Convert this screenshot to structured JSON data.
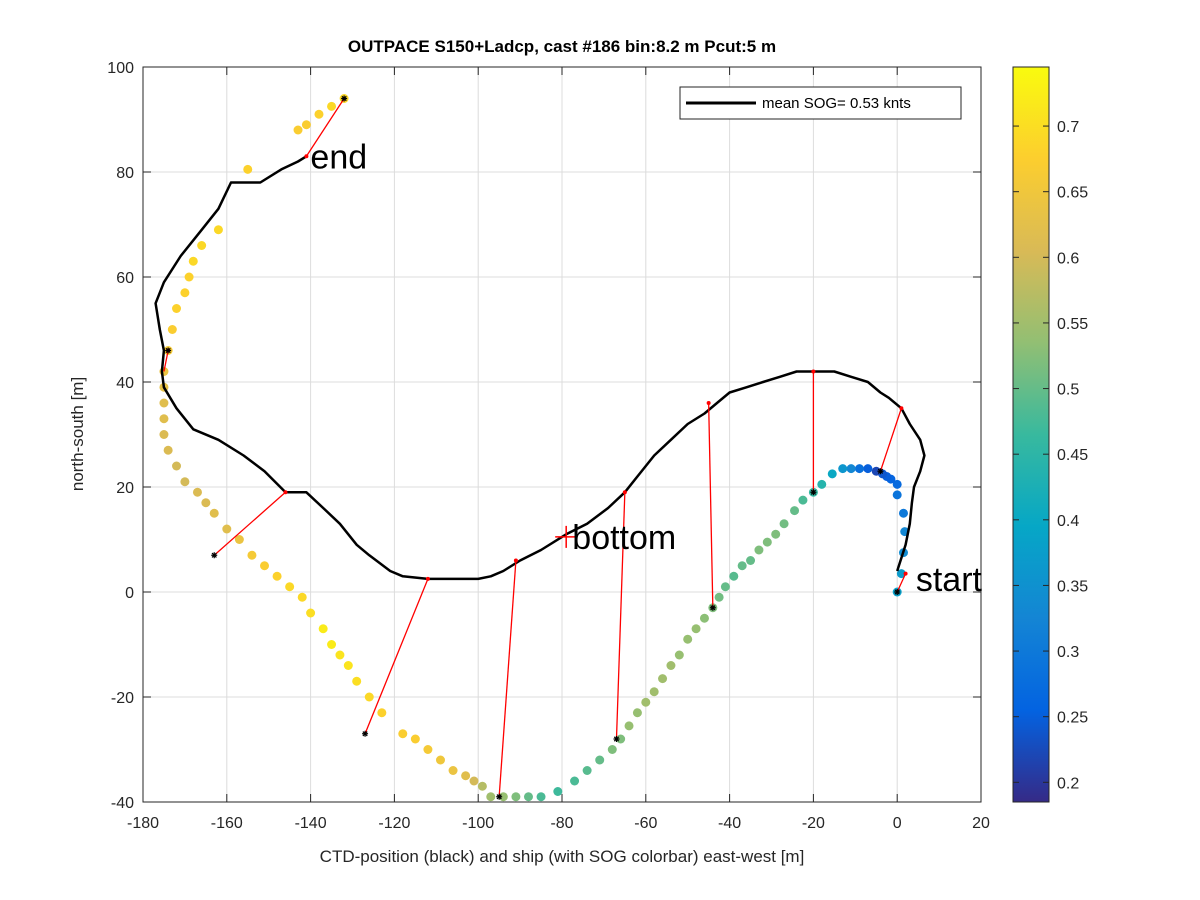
{
  "chart_data": {
    "type": "scatter",
    "title": "OUTPACE S150+Ladcp, cast #186 bin:8.2 m  Pcut:5 m",
    "xlabel": "CTD-position (black) and ship (with SOG colorbar) east-west [m]",
    "ylabel": "north-south [m]",
    "xlim": [
      -180,
      20
    ],
    "ylim": [
      -40,
      100
    ],
    "xticks": [
      "-180",
      "-160",
      "-140",
      "-120",
      "-100",
      "-80",
      "-60",
      "-40",
      "-20",
      "0",
      "20"
    ],
    "yticks": [
      "-40",
      "-20",
      "0",
      "20",
      "40",
      "60",
      "80",
      "100"
    ],
    "grid": true,
    "legend": {
      "entry": "mean SOG=  0.53 knts",
      "placement": "top-right"
    },
    "annotations": [
      {
        "text": "end",
        "x": -141,
        "y": 83
      },
      {
        "text": "bottom",
        "x": -78.5,
        "y": 10.5
      },
      {
        "text": "start",
        "x": 3.5,
        "y": 2.5
      }
    ],
    "bottom_marker": {
      "x": -79,
      "y": 10.5
    },
    "colorbar": {
      "range": [
        0.185,
        0.745
      ],
      "ticks": [
        "0.2",
        "0.25",
        "0.3",
        "0.35",
        "0.4",
        "0.45",
        "0.5",
        "0.55",
        "0.6",
        "0.65",
        "0.7"
      ],
      "colormap": [
        "#352a87",
        "#0363e1",
        "#1485d4",
        "#06a7c6",
        "#38b99e",
        "#92bf73",
        "#d9ba56",
        "#fcce2e",
        "#f9fb0e"
      ]
    },
    "ctd_track": [
      [
        0,
        4
      ],
      [
        2,
        9
      ],
      [
        3,
        13
      ],
      [
        3.5,
        17
      ],
      [
        4,
        20
      ],
      [
        5.5,
        23
      ],
      [
        6.5,
        26
      ],
      [
        5.5,
        29
      ],
      [
        3,
        32
      ],
      [
        1,
        35
      ],
      [
        -2,
        37
      ],
      [
        -4,
        38
      ],
      [
        -7,
        40
      ],
      [
        -11,
        41
      ],
      [
        -15,
        42
      ],
      [
        -20,
        42
      ],
      [
        -24,
        42
      ],
      [
        -28,
        41
      ],
      [
        -32,
        40
      ],
      [
        -36,
        39
      ],
      [
        -40,
        38
      ],
      [
        -43,
        36
      ],
      [
        -46,
        34
      ],
      [
        -50,
        32
      ],
      [
        -54,
        29
      ],
      [
        -58,
        26
      ],
      [
        -62,
        22
      ],
      [
        -65,
        19
      ],
      [
        -69,
        16
      ],
      [
        -74,
        13
      ],
      [
        -79,
        11
      ],
      [
        -85,
        8
      ],
      [
        -90,
        6
      ],
      [
        -94,
        4
      ],
      [
        -97,
        3
      ],
      [
        -100,
        2.5
      ],
      [
        -106,
        2.5
      ],
      [
        -112,
        2.5
      ],
      [
        -118,
        3
      ],
      [
        -121,
        4
      ],
      [
        -126,
        7
      ],
      [
        -129,
        9
      ],
      [
        -133,
        13
      ],
      [
        -137,
        16
      ],
      [
        -141,
        19
      ],
      [
        -146,
        19
      ],
      [
        -151,
        23
      ],
      [
        -156,
        26
      ],
      [
        -162,
        29
      ],
      [
        -168,
        31
      ],
      [
        -172,
        35
      ],
      [
        -175,
        39
      ],
      [
        -175.5,
        42
      ],
      [
        -175,
        46
      ],
      [
        -176,
        50
      ],
      [
        -177,
        55
      ],
      [
        -175,
        59
      ],
      [
        -171,
        64
      ],
      [
        -166,
        69
      ],
      [
        -162,
        73
      ],
      [
        -159,
        78
      ],
      [
        -155,
        78
      ],
      [
        -152,
        78
      ],
      [
        -147,
        80.5
      ],
      [
        -143,
        82
      ],
      [
        -141,
        83
      ]
    ],
    "ship_positions": [
      [
        0,
        0,
        0.38
      ],
      [
        1,
        3.5,
        0.37
      ],
      [
        1.5,
        7.5,
        0.34
      ],
      [
        1.8,
        11.5,
        0.33
      ],
      [
        1.5,
        15,
        0.3
      ],
      [
        0,
        18.5,
        0.29
      ],
      [
        0,
        20.5,
        0.27
      ],
      [
        -1.5,
        21.5,
        0.26
      ],
      [
        -2.5,
        22,
        0.25
      ],
      [
        -3.5,
        22.5,
        0.24
      ],
      [
        -5,
        23,
        0.22
      ],
      [
        -7,
        23.5,
        0.25
      ],
      [
        -9,
        23.5,
        0.28
      ],
      [
        -11,
        23.5,
        0.33
      ],
      [
        -13,
        23.5,
        0.36
      ],
      [
        -15.5,
        22.5,
        0.4
      ],
      [
        -18,
        20.5,
        0.44
      ],
      [
        -20,
        19,
        0.46
      ],
      [
        -22.5,
        17.5,
        0.48
      ],
      [
        -24.5,
        15.5,
        0.5
      ],
      [
        -27,
        13,
        0.51
      ],
      [
        -29,
        11,
        0.52
      ],
      [
        -31,
        9.5,
        0.52
      ],
      [
        -33,
        8,
        0.52
      ],
      [
        -35,
        6,
        0.5
      ],
      [
        -37,
        5,
        0.5
      ],
      [
        -39,
        3,
        0.49
      ],
      [
        -41,
        1,
        0.5
      ],
      [
        -42.5,
        -1,
        0.51
      ],
      [
        -44,
        -3,
        0.52
      ],
      [
        -46,
        -5,
        0.53
      ],
      [
        -48,
        -7,
        0.54
      ],
      [
        -50,
        -9,
        0.54
      ],
      [
        -52,
        -12,
        0.54
      ],
      [
        -54,
        -14,
        0.55
      ],
      [
        -56,
        -16.5,
        0.55
      ],
      [
        -58,
        -19,
        0.55
      ],
      [
        -60,
        -21,
        0.55
      ],
      [
        -62,
        -23,
        0.54
      ],
      [
        -64,
        -25.5,
        0.54
      ],
      [
        -66,
        -28,
        0.52
      ],
      [
        -68,
        -30,
        0.52
      ],
      [
        -71,
        -32,
        0.5
      ],
      [
        -74,
        -34,
        0.49
      ],
      [
        -77,
        -36,
        0.48
      ],
      [
        -81,
        -38,
        0.47
      ],
      [
        -85,
        -39,
        0.48
      ],
      [
        -88,
        -39,
        0.5
      ],
      [
        -91,
        -39,
        0.52
      ],
      [
        -94,
        -39,
        0.54
      ],
      [
        -97,
        -39,
        0.55
      ],
      [
        -99,
        -37,
        0.57
      ],
      [
        -101,
        -36,
        0.6
      ],
      [
        -103,
        -35,
        0.62
      ],
      [
        -106,
        -34,
        0.64
      ],
      [
        -109,
        -32,
        0.65
      ],
      [
        -112,
        -30,
        0.66
      ],
      [
        -115,
        -28,
        0.67
      ],
      [
        -118,
        -27,
        0.67
      ],
      [
        -123,
        -23,
        0.68
      ],
      [
        -126,
        -20,
        0.69
      ],
      [
        -129,
        -17,
        0.7
      ],
      [
        -131,
        -14,
        0.71
      ],
      [
        -133,
        -12,
        0.71
      ],
      [
        -135,
        -10,
        0.72
      ],
      [
        -137,
        -7,
        0.72
      ],
      [
        -140,
        -4,
        0.7
      ],
      [
        -142,
        -1,
        0.69
      ],
      [
        -145,
        1,
        0.69
      ],
      [
        -148,
        3,
        0.68
      ],
      [
        -151,
        5,
        0.67
      ],
      [
        -154,
        7,
        0.66
      ],
      [
        -157,
        10,
        0.64
      ],
      [
        -160,
        12,
        0.62
      ],
      [
        -163,
        15,
        0.62
      ],
      [
        -165,
        17,
        0.61
      ],
      [
        -167,
        19,
        0.61
      ],
      [
        -170,
        21,
        0.6
      ],
      [
        -172,
        24,
        0.6
      ],
      [
        -174,
        27,
        0.61
      ],
      [
        -175,
        30,
        0.61
      ],
      [
        -175,
        33,
        0.62
      ],
      [
        -175,
        36,
        0.62
      ],
      [
        -175,
        39,
        0.63
      ],
      [
        -175,
        42,
        0.64
      ],
      [
        -174,
        46,
        0.66
      ],
      [
        -173,
        50,
        0.67
      ],
      [
        -172,
        54,
        0.68
      ],
      [
        -170,
        57,
        0.68
      ],
      [
        -169,
        60,
        0.68
      ],
      [
        -168,
        63,
        0.69
      ],
      [
        -166,
        66,
        0.69
      ],
      [
        -162,
        69,
        0.69
      ],
      [
        -155,
        80.5,
        0.68
      ],
      [
        -143,
        88,
        0.67
      ],
      [
        -141,
        89,
        0.67
      ],
      [
        -138,
        91,
        0.68
      ],
      [
        -135,
        92.5,
        0.69
      ],
      [
        -132,
        94,
        0.69
      ]
    ],
    "connectors": [
      [
        [
          0,
          0
        ],
        [
          2,
          3.5
        ]
      ],
      [
        [
          -4,
          23
        ],
        [
          1,
          35
        ]
      ],
      [
        [
          -20,
          19
        ],
        [
          -20,
          42
        ]
      ],
      [
        [
          -44,
          -3
        ],
        [
          -45,
          36
        ]
      ],
      [
        [
          -67,
          -28
        ],
        [
          -65,
          19
        ]
      ],
      [
        [
          -95,
          -39
        ],
        [
          -91,
          6
        ]
      ],
      [
        [
          -127,
          -27
        ],
        [
          -112,
          2.5
        ]
      ],
      [
        [
          -163,
          7
        ],
        [
          -146,
          19
        ]
      ],
      [
        [
          -175,
          42
        ],
        [
          -174,
          46
        ]
      ],
      [
        [
          -132,
          94
        ],
        [
          -141,
          83
        ]
      ]
    ],
    "marked_positions": [
      [
        0,
        0
      ],
      [
        -4,
        23
      ],
      [
        -20,
        19
      ],
      [
        -44,
        -3
      ],
      [
        -67,
        -28
      ],
      [
        -95,
        -39
      ],
      [
        -127,
        -27
      ],
      [
        -163,
        7
      ],
      [
        -174,
        46
      ],
      [
        -132,
        94
      ]
    ]
  }
}
